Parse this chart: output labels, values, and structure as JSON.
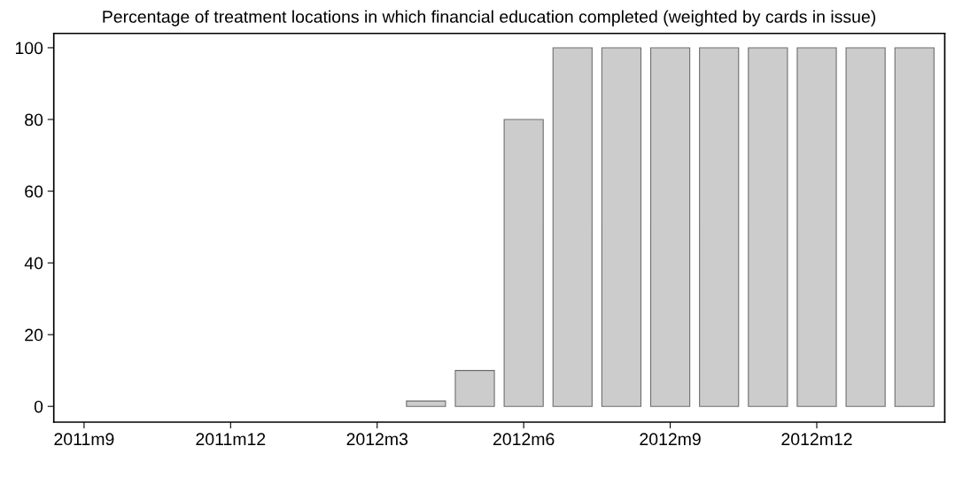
{
  "chart_data": {
    "type": "bar",
    "title": "Percentage of treatment locations in which financial education completed (weighted by cards in issue)",
    "categories": [
      "2011m9",
      null,
      null,
      "2011m12",
      null,
      null,
      "2012m3",
      null,
      null,
      "2012m6",
      null,
      null,
      "2012m9",
      null,
      null,
      "2012m12",
      null,
      null
    ],
    "series": [
      {
        "color": "#cccccc",
        "values": [
          null,
          null,
          null,
          null,
          null,
          null,
          null,
          1.5,
          10,
          80,
          100,
          100,
          100,
          100,
          100,
          100,
          100,
          100
        ]
      }
    ],
    "ylim": [
      -4.4,
      104
    ],
    "yticks": [
      0,
      20,
      40,
      60,
      80,
      100
    ],
    "grid": false,
    "legend": false
  }
}
